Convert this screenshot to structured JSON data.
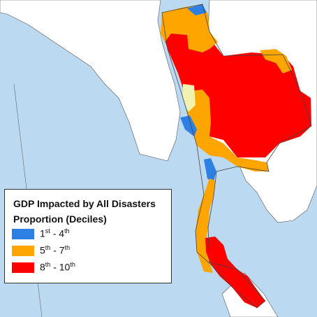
{
  "legend": {
    "title": "GDP Impacted by All Disasters",
    "subtitle": "Proportion (Deciles)",
    "items": [
      {
        "from": "1",
        "from_sup": "st",
        "sep": " - ",
        "to": "4",
        "to_sup": "th",
        "color": "#2e7fe3"
      },
      {
        "from": "5",
        "from_sup": "th",
        "sep": " - ",
        "to": "7",
        "to_sup": "th",
        "color": "#ffa500"
      },
      {
        "from": "8",
        "from_sup": "th",
        "sep": " - ",
        "to": "10",
        "to_sup": "th",
        "color": "#ff0000"
      }
    ]
  },
  "colors": {
    "ocean": "#bcd9f2",
    "land": "#ffffff",
    "low_decile": "#2e7fe3",
    "mid_decile": "#ffa500",
    "high_decile": "#ff0000",
    "no_data": "#f2f2b0"
  }
}
